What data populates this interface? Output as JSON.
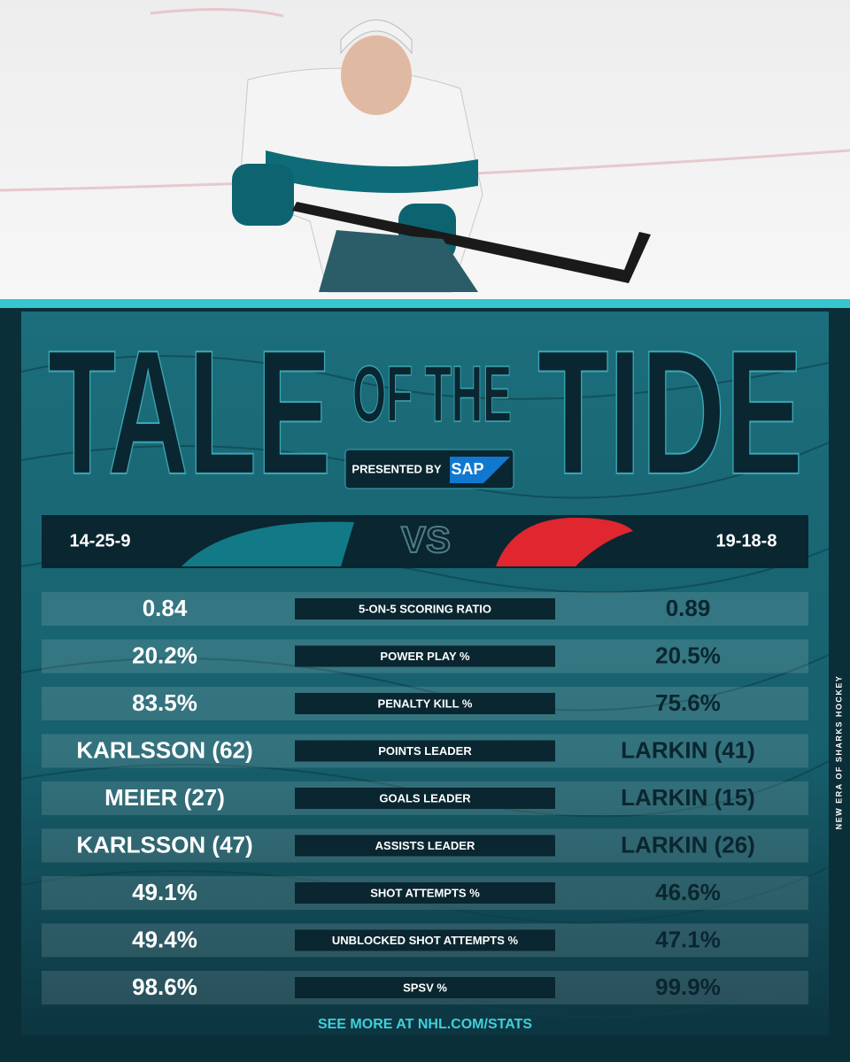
{
  "header": {
    "title_left": "TALE",
    "title_middle": "OF THE",
    "title_right": "TIDE",
    "presented_by": "PRESENTED BY",
    "sponsor": "SAP"
  },
  "matchup": {
    "home_record": "14-25-9",
    "versus": "VS",
    "away_record": "19-18-8"
  },
  "table": {
    "rows": [
      [
        "0.84",
        "5-ON-5 SCORING RATIO",
        "0.89"
      ],
      [
        "20.2%",
        "POWER PLAY %",
        "20.5%"
      ],
      [
        "83.5%",
        "PENALTY KILL %",
        "75.6%"
      ],
      [
        "KARLSSON (62)",
        "POINTS LEADER",
        "LARKIN (41)"
      ],
      [
        "MEIER (27)",
        "GOALS LEADER",
        "LARKIN (15)"
      ],
      [
        "KARLSSON (47)",
        "ASSISTS LEADER",
        "LARKIN (26)"
      ],
      [
        "49.1%",
        "SHOT ATTEMPTS %",
        "46.6%"
      ],
      [
        "49.4%",
        "UNBLOCKED SHOT ATTEMPTS %",
        "47.1%"
      ],
      [
        "98.6%",
        "SPSV %",
        "99.9%"
      ]
    ]
  },
  "footer": {
    "link": "SEE MORE AT NHL.COM/STATS",
    "side_text": "NEW ERA OF SHARKS HOCKEY"
  }
}
